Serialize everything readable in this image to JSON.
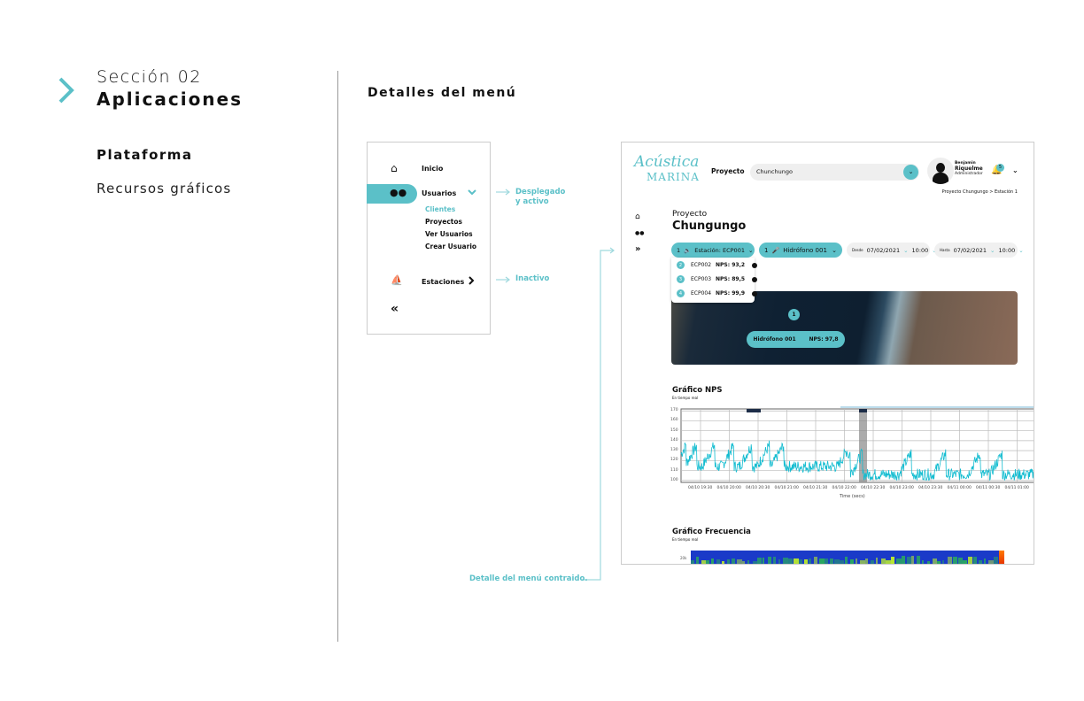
{
  "section": {
    "number": "Sección 02",
    "title": "Aplicaciones",
    "items": [
      "Plataforma",
      "Recursos gráficos"
    ]
  },
  "heading": "Detalles del menú",
  "menu": {
    "items": [
      {
        "label": "Inicio",
        "icon": "home-icon"
      },
      {
        "label": "Usuarios",
        "icon": "users-icon",
        "state": "expanded-active"
      },
      {
        "label": "Estaciones",
        "icon": "ship-icon",
        "state": "inactive"
      }
    ],
    "subitems": [
      "Clientes",
      "Proyectos",
      "Ver Usuarios",
      "Crear Usuario"
    ],
    "active_subitem": "Clientes"
  },
  "annotations": {
    "expanded": [
      "Desplegado",
      "y activo"
    ],
    "inactive": "Inactivo",
    "collapsed": "Detalle del menú contraido."
  },
  "app": {
    "logo": [
      "Acústica",
      "MARINA"
    ],
    "project_label": "Proyecto",
    "project_value": "Chunchungo",
    "user": {
      "first": "Benjamin",
      "last": "Riquelme",
      "role": "Administrador"
    },
    "notifications": "5",
    "breadcrumb": "Proyecto Chungungo > Estación 1",
    "page_label": "Proyecto",
    "page_title": "Chungungo",
    "station": {
      "num": "1",
      "label": "Estación: ECP001"
    },
    "hydrophone": {
      "num": "1",
      "label": "Hidrófono 001"
    },
    "desde": {
      "label": "Desde",
      "date": "07/02/2021",
      "time": "10:00"
    },
    "hasta": {
      "label": "Hasta",
      "date": "07/02/2021",
      "time": "10:00"
    },
    "stations": [
      {
        "num": "2",
        "id": "ECP002",
        "nps": "NPS: 93,2"
      },
      {
        "num": "3",
        "id": "ECP003",
        "nps": "NPS: 89,5"
      },
      {
        "num": "4",
        "id": "ECP004",
        "nps": "NPS: 99,9"
      }
    ],
    "map_pin": "1",
    "map_tooltip": {
      "name": "Hidrófono 001",
      "nps": "NPS: 97,8"
    },
    "nps_chart": {
      "title": "Gráfico NPS",
      "subtitle": "En tiempo real",
      "yticks": [
        "170",
        "160",
        "150",
        "140",
        "130",
        "120",
        "110",
        "100"
      ],
      "xticks": [
        "04/10 19:30",
        "04/10 20:00",
        "04/10 20:30",
        "04/10 21:00",
        "04/10 21:30",
        "04/10 22:00",
        "04/10 22:30",
        "04/10 23:00",
        "04/10 23:30",
        "04/11 00:00",
        "04/11 00:30",
        "04/11 01:00"
      ],
      "xlabel": "Time (secs)"
    },
    "freq_chart": {
      "title": "Gráfico Frecuencia",
      "subtitle": "En tiempo real",
      "ytick": "20k"
    }
  },
  "colors": {
    "accent": "#5bc0c8",
    "line": "#12bcd0"
  }
}
